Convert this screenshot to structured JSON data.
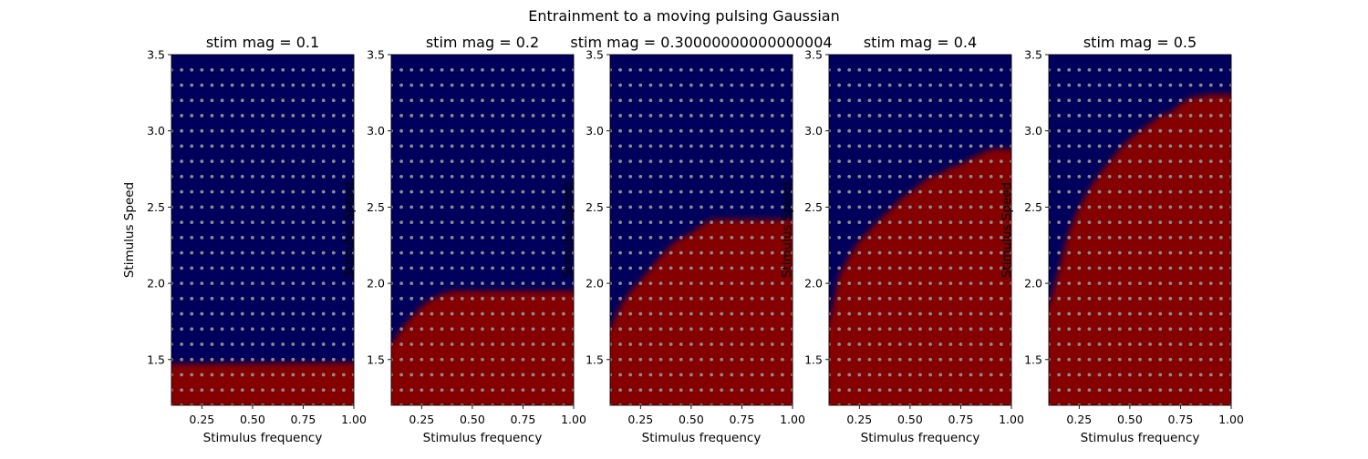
{
  "figure": {
    "suptitle": "Entrainment to a moving pulsing Gaussian"
  },
  "colors": {
    "not_entrained": "#00005c",
    "entrained": "#850000",
    "sample_point": "#8c8c8c"
  },
  "chart_data": [
    {
      "type": "heatmap",
      "title": "stim mag = 0.1",
      "xlabel": "Stimulus frequency",
      "ylabel": "Stimulus Speed",
      "xlim": [
        0.1,
        1.0
      ],
      "ylim": [
        1.2,
        3.5
      ],
      "xticks": [
        "0.25",
        "0.50",
        "0.75",
        "1.00"
      ],
      "yticks": [
        "1.5",
        "2.0",
        "2.5",
        "3.0",
        "3.5"
      ],
      "grid": false,
      "sample_points": {
        "freq_start": 0.1,
        "freq_step": 0.05,
        "freq_count": 19,
        "speed_start": 1.2,
        "speed_step": 0.1,
        "speed_count": 23
      },
      "boundary": {
        "x": [
          0.1,
          1.0
        ],
        "speed": [
          1.47,
          1.48
        ]
      }
    },
    {
      "type": "heatmap",
      "title": "stim mag = 0.2",
      "xlabel": "Stimulus frequency",
      "ylabel": "Stimulus Speed",
      "xlim": [
        0.1,
        1.0
      ],
      "ylim": [
        1.2,
        3.5
      ],
      "xticks": [
        "0.25",
        "0.50",
        "0.75",
        "1.00"
      ],
      "yticks": [
        "1.5",
        "2.0",
        "2.5",
        "3.0",
        "3.5"
      ],
      "grid": false,
      "sample_points": {
        "freq_start": 0.1,
        "freq_step": 0.05,
        "freq_count": 19,
        "speed_start": 1.2,
        "speed_step": 0.1,
        "speed_count": 23
      },
      "boundary": {
        "x": [
          0.1,
          0.15,
          0.2,
          0.25,
          0.3,
          0.35,
          0.4,
          0.5,
          0.6,
          0.7,
          0.8,
          0.9,
          1.0
        ],
        "speed": [
          1.6,
          1.7,
          1.78,
          1.85,
          1.9,
          1.93,
          1.95,
          1.95,
          1.95,
          1.95,
          1.95,
          1.95,
          1.95
        ]
      }
    },
    {
      "type": "heatmap",
      "title": "stim mag = 0.30000000000000004",
      "xlabel": "Stimulus frequency",
      "ylabel": "Stimulus Speed",
      "xlim": [
        0.1,
        1.0
      ],
      "ylim": [
        1.2,
        3.5
      ],
      "xticks": [
        "0.25",
        "0.50",
        "0.75",
        "1.00"
      ],
      "yticks": [
        "1.5",
        "2.0",
        "2.5",
        "3.0",
        "3.5"
      ],
      "grid": false,
      "sample_points": {
        "freq_start": 0.1,
        "freq_step": 0.05,
        "freq_count": 19,
        "speed_start": 1.2,
        "speed_step": 0.1,
        "speed_count": 23
      },
      "boundary": {
        "x": [
          0.1,
          0.15,
          0.2,
          0.25,
          0.3,
          0.35,
          0.4,
          0.45,
          0.5,
          0.55,
          0.6,
          0.65,
          0.7,
          0.8,
          0.9,
          1.0
        ],
        "speed": [
          1.7,
          1.85,
          1.95,
          2.02,
          2.1,
          2.18,
          2.25,
          2.3,
          2.33,
          2.38,
          2.42,
          2.42,
          2.42,
          2.42,
          2.42,
          2.42
        ]
      }
    },
    {
      "type": "heatmap",
      "title": "stim mag = 0.4",
      "xlabel": "Stimulus frequency",
      "ylabel": "Stimulus Speed",
      "xlim": [
        0.1,
        1.0
      ],
      "ylim": [
        1.2,
        3.5
      ],
      "xticks": [
        "0.25",
        "0.50",
        "0.75",
        "1.00"
      ],
      "yticks": [
        "1.5",
        "2.0",
        "2.5",
        "3.0",
        "3.5"
      ],
      "grid": false,
      "sample_points": {
        "freq_start": 0.1,
        "freq_step": 0.05,
        "freq_count": 19,
        "speed_start": 1.2,
        "speed_step": 0.1,
        "speed_count": 23
      },
      "boundary": {
        "x": [
          0.1,
          0.15,
          0.2,
          0.25,
          0.3,
          0.35,
          0.4,
          0.45,
          0.5,
          0.55,
          0.6,
          0.65,
          0.7,
          0.75,
          0.8,
          0.85,
          0.9,
          1.0
        ],
        "speed": [
          1.75,
          2.05,
          2.18,
          2.28,
          2.35,
          2.42,
          2.48,
          2.55,
          2.6,
          2.65,
          2.7,
          2.72,
          2.76,
          2.78,
          2.82,
          2.85,
          2.88,
          2.88
        ]
      }
    },
    {
      "type": "heatmap",
      "title": "stim mag = 0.5",
      "xlabel": "Stimulus frequency",
      "ylabel": "Stimulus Speed",
      "xlim": [
        0.1,
        1.0
      ],
      "ylim": [
        1.2,
        3.5
      ],
      "xticks": [
        "0.25",
        "0.50",
        "0.75",
        "1.00"
      ],
      "yticks": [
        "1.5",
        "2.0",
        "2.5",
        "3.0",
        "3.5"
      ],
      "grid": false,
      "sample_points": {
        "freq_start": 0.1,
        "freq_step": 0.05,
        "freq_count": 19,
        "speed_start": 1.2,
        "speed_step": 0.1,
        "speed_count": 23
      },
      "boundary": {
        "x": [
          0.1,
          0.15,
          0.2,
          0.25,
          0.3,
          0.35,
          0.4,
          0.45,
          0.5,
          0.55,
          0.6,
          0.65,
          0.7,
          0.75,
          0.8,
          0.85,
          0.9,
          1.0
        ],
        "speed": [
          1.85,
          2.1,
          2.35,
          2.5,
          2.62,
          2.72,
          2.8,
          2.88,
          2.95,
          3.0,
          3.05,
          3.1,
          3.12,
          3.18,
          3.22,
          3.23,
          3.24,
          3.24
        ]
      }
    }
  ]
}
